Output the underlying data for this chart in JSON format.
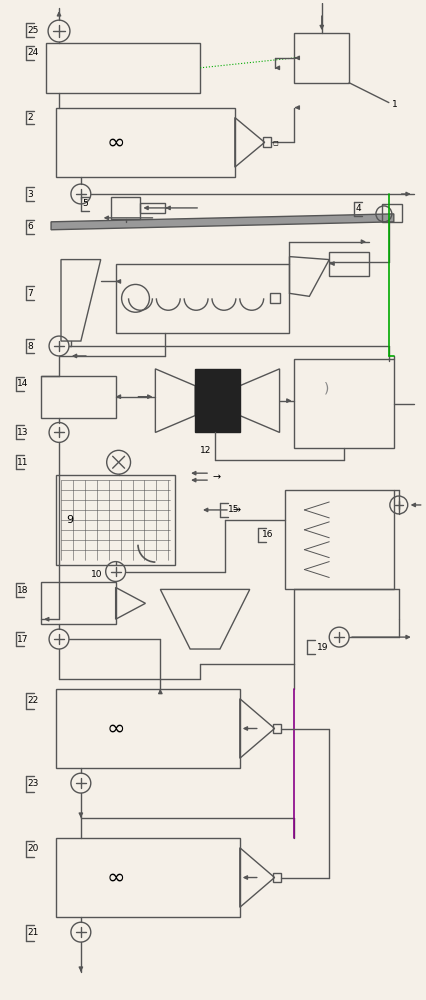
{
  "bg_color": "#f5f0e8",
  "lc": "#555555",
  "gc": "#00aa00",
  "pc": "#880088",
  "line_width": 1.0,
  "components": [
    "1",
    "2",
    "3",
    "4",
    "5",
    "6",
    "7",
    "8",
    "9",
    "10",
    "11",
    "12",
    "13",
    "14",
    "15",
    "16",
    "17",
    "18",
    "19",
    "20",
    "21",
    "22",
    "23",
    "24",
    "25"
  ]
}
